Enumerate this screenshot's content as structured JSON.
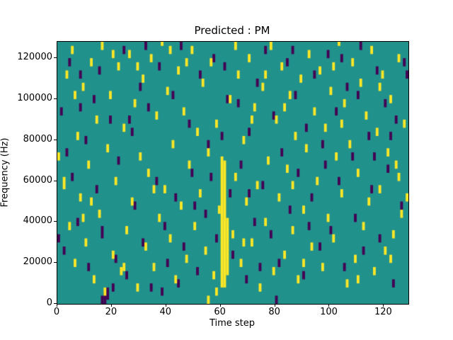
{
  "title": "Predicted : PM",
  "chart_data": {
    "type": "heatmap",
    "title": "Predicted : PM",
    "xlabel": "Time step",
    "ylabel": "Frequency (Hz)",
    "x_range": [
      0,
      129
    ],
    "y_range": [
      0,
      128000
    ],
    "n_time_steps": 129,
    "n_freq_bins": 64,
    "freq_bin_hz": 2000,
    "x_ticks": [
      0,
      20,
      40,
      60,
      80,
      100,
      120
    ],
    "y_ticks": [
      0,
      20000,
      40000,
      60000,
      80000,
      100000,
      120000
    ],
    "grid": false,
    "legend": "none",
    "colors": {
      "background": "#21918c",
      "high": "#fde725",
      "low": "#440154"
    },
    "cells": {
      "high_runs": [
        [
          60,
          4,
          35
        ],
        [
          61,
          4,
          34
        ],
        [
          62,
          7,
          20
        ],
        [
          2,
          28,
          30
        ],
        [
          3,
          55,
          56
        ],
        [
          4,
          18,
          19
        ],
        [
          5,
          61,
          62
        ],
        [
          6,
          9,
          10
        ],
        [
          7,
          40,
          41
        ],
        [
          8,
          25,
          26
        ],
        [
          9,
          52,
          53
        ],
        [
          10,
          14,
          15
        ],
        [
          11,
          33,
          34
        ],
        [
          12,
          58,
          59
        ],
        [
          13,
          5,
          6
        ],
        [
          14,
          44,
          45
        ],
        [
          15,
          21,
          22
        ],
        [
          16,
          62,
          63
        ],
        [
          17,
          2,
          3
        ],
        [
          18,
          37,
          38
        ],
        [
          19,
          50,
          51
        ],
        [
          20,
          11,
          12
        ],
        [
          21,
          29,
          30
        ],
        [
          22,
          57,
          58
        ],
        [
          23,
          7,
          8
        ],
        [
          24,
          42,
          43
        ],
        [
          25,
          17,
          18
        ],
        [
          26,
          60,
          61
        ],
        [
          27,
          24,
          25
        ],
        [
          28,
          48,
          49
        ],
        [
          29,
          3,
          4
        ],
        [
          30,
          35,
          36
        ],
        [
          31,
          54,
          55
        ],
        [
          32,
          13,
          14
        ],
        [
          33,
          31,
          32
        ],
        [
          34,
          59,
          60
        ],
        [
          35,
          8,
          9
        ],
        [
          36,
          45,
          46
        ],
        [
          37,
          20,
          21
        ],
        [
          38,
          63,
          63
        ],
        [
          39,
          27,
          28
        ],
        [
          40,
          51,
          52
        ],
        [
          41,
          15,
          16
        ],
        [
          42,
          38,
          39
        ],
        [
          43,
          5,
          6
        ],
        [
          44,
          56,
          57
        ],
        [
          45,
          23,
          24
        ],
        [
          46,
          46,
          47
        ],
        [
          47,
          10,
          11
        ],
        [
          48,
          33,
          34
        ],
        [
          49,
          61,
          62
        ],
        [
          50,
          18,
          19
        ],
        [
          51,
          41,
          42
        ],
        [
          52,
          26,
          27
        ],
        [
          53,
          53,
          54
        ],
        [
          54,
          12,
          13
        ],
        [
          55,
          36,
          37
        ],
        [
          56,
          58,
          59
        ],
        [
          57,
          6,
          7
        ],
        [
          58,
          43,
          44
        ],
        [
          59,
          22,
          23
        ],
        [
          63,
          49,
          50
        ],
        [
          64,
          16,
          17
        ],
        [
          65,
          30,
          31
        ],
        [
          66,
          55,
          56
        ],
        [
          67,
          9,
          10
        ],
        [
          68,
          39,
          40
        ],
        [
          69,
          24,
          25
        ],
        [
          70,
          59,
          60
        ],
        [
          71,
          14,
          15
        ],
        [
          72,
          47,
          48
        ],
        [
          73,
          28,
          29
        ],
        [
          74,
          3,
          4
        ],
        [
          75,
          52,
          53
        ],
        [
          76,
          19,
          20
        ],
        [
          77,
          34,
          35
        ],
        [
          78,
          62,
          63
        ],
        [
          79,
          7,
          8
        ],
        [
          80,
          44,
          45
        ],
        [
          81,
          25,
          26
        ],
        [
          82,
          57,
          58
        ],
        [
          83,
          11,
          12
        ],
        [
          84,
          32,
          33
        ],
        [
          85,
          50,
          51
        ],
        [
          86,
          17,
          18
        ],
        [
          87,
          40,
          41
        ],
        [
          88,
          5,
          6
        ],
        [
          89,
          54,
          55
        ],
        [
          90,
          22,
          23
        ],
        [
          91,
          37,
          38
        ],
        [
          92,
          60,
          61
        ],
        [
          93,
          13,
          14
        ],
        [
          94,
          46,
          47
        ],
        [
          95,
          29,
          30
        ],
        [
          96,
          56,
          57
        ],
        [
          97,
          8,
          9
        ],
        [
          98,
          42,
          43
        ],
        [
          99,
          20,
          21
        ],
        [
          100,
          51,
          52
        ],
        [
          101,
          15,
          16
        ],
        [
          102,
          35,
          36
        ],
        [
          103,
          63,
          63
        ],
        [
          104,
          26,
          27
        ],
        [
          105,
          48,
          49
        ],
        [
          106,
          4,
          5
        ],
        [
          107,
          38,
          39
        ],
        [
          108,
          58,
          59
        ],
        [
          109,
          10,
          11
        ],
        [
          110,
          31,
          32
        ],
        [
          111,
          53,
          54
        ],
        [
          112,
          18,
          19
        ],
        [
          113,
          45,
          46
        ],
        [
          114,
          24,
          25
        ],
        [
          115,
          61,
          62
        ],
        [
          116,
          7,
          8
        ],
        [
          117,
          41,
          42
        ],
        [
          118,
          27,
          28
        ],
        [
          119,
          55,
          56
        ],
        [
          120,
          12,
          13
        ],
        [
          121,
          36,
          37
        ],
        [
          122,
          49,
          50
        ],
        [
          123,
          16,
          17
        ],
        [
          124,
          33,
          34
        ],
        [
          125,
          59,
          60
        ],
        [
          126,
          21,
          22
        ],
        [
          127,
          43,
          44
        ],
        [
          6,
          50,
          51
        ],
        [
          20,
          60,
          61
        ],
        [
          29,
          57,
          58
        ],
        [
          35,
          27,
          28
        ],
        [
          47,
          58,
          59
        ],
        [
          58,
          2,
          3
        ],
        [
          65,
          62,
          63
        ],
        [
          71,
          44,
          45
        ],
        [
          83,
          47,
          48
        ],
        [
          90,
          9,
          10
        ],
        [
          101,
          57,
          58
        ],
        [
          110,
          5,
          6
        ],
        [
          118,
          52,
          53
        ],
        [
          125,
          30,
          31
        ],
        [
          9,
          20,
          21
        ],
        [
          24,
          8,
          9
        ],
        [
          41,
          61,
          62
        ],
        [
          55,
          0,
          1
        ],
        [
          68,
          14,
          15
        ],
        [
          86,
          28,
          29
        ],
        [
          104,
          43,
          44
        ],
        [
          122,
          10,
          11
        ],
        [
          0,
          35,
          36
        ],
        [
          128,
          25,
          26
        ],
        [
          12,
          24,
          25
        ],
        [
          76,
          55,
          56
        ]
      ],
      "low_runs": [
        [
          1,
          46,
          47
        ],
        [
          2,
          12,
          13
        ],
        [
          4,
          58,
          59
        ],
        [
          5,
          30,
          31
        ],
        [
          7,
          19,
          20
        ],
        [
          8,
          55,
          56
        ],
        [
          10,
          39,
          40
        ],
        [
          11,
          8,
          9
        ],
        [
          13,
          49,
          50
        ],
        [
          14,
          27,
          28
        ],
        [
          16,
          16,
          18
        ],
        [
          16,
          0,
          1
        ],
        [
          17,
          0,
          2
        ],
        [
          18,
          1,
          3
        ],
        [
          19,
          44,
          45
        ],
        [
          21,
          10,
          11
        ],
        [
          22,
          34,
          35
        ],
        [
          24,
          61,
          62
        ],
        [
          25,
          6,
          7
        ],
        [
          27,
          41,
          42
        ],
        [
          28,
          23,
          24
        ],
        [
          30,
          52,
          53
        ],
        [
          31,
          14,
          15
        ],
        [
          33,
          47,
          48
        ],
        [
          34,
          3,
          4
        ],
        [
          36,
          29,
          30
        ],
        [
          37,
          57,
          58
        ],
        [
          39,
          18,
          19
        ],
        [
          40,
          9,
          10
        ],
        [
          42,
          50,
          51
        ],
        [
          43,
          25,
          26
        ],
        [
          45,
          62,
          63
        ],
        [
          46,
          13,
          14
        ],
        [
          48,
          43,
          44
        ],
        [
          49,
          31,
          32
        ],
        [
          51,
          7,
          8
        ],
        [
          52,
          55,
          56
        ],
        [
          54,
          21,
          22
        ],
        [
          55,
          38,
          39
        ],
        [
          57,
          59,
          60
        ],
        [
          58,
          15,
          16
        ],
        [
          60,
          40,
          41
        ],
        [
          61,
          57,
          58
        ],
        [
          63,
          26,
          27
        ],
        [
          64,
          11,
          12
        ],
        [
          66,
          48,
          49
        ],
        [
          67,
          33,
          34
        ],
        [
          69,
          5,
          6
        ],
        [
          70,
          41,
          42
        ],
        [
          72,
          19,
          20
        ],
        [
          73,
          53,
          54
        ],
        [
          75,
          28,
          29
        ],
        [
          76,
          61,
          62
        ],
        [
          78,
          16,
          17
        ],
        [
          79,
          45,
          46
        ],
        [
          81,
          9,
          10
        ],
        [
          82,
          36,
          37
        ],
        [
          84,
          58,
          59
        ],
        [
          85,
          22,
          23
        ],
        [
          87,
          50,
          51
        ],
        [
          88,
          31,
          32
        ],
        [
          90,
          6,
          7
        ],
        [
          91,
          42,
          43
        ],
        [
          93,
          25,
          26
        ],
        [
          94,
          55,
          56
        ],
        [
          96,
          13,
          14
        ],
        [
          97,
          38,
          39
        ],
        [
          99,
          60,
          61
        ],
        [
          100,
          17,
          18
        ],
        [
          102,
          46,
          47
        ],
        [
          103,
          29,
          30
        ],
        [
          105,
          8,
          9
        ],
        [
          106,
          52,
          53
        ],
        [
          108,
          35,
          36
        ],
        [
          109,
          20,
          21
        ],
        [
          111,
          62,
          63
        ],
        [
          112,
          12,
          13
        ],
        [
          114,
          40,
          41
        ],
        [
          115,
          27,
          28
        ],
        [
          117,
          56,
          57
        ],
        [
          118,
          15,
          16
        ],
        [
          120,
          48,
          49
        ],
        [
          121,
          32,
          33
        ],
        [
          123,
          4,
          5
        ],
        [
          124,
          44,
          45
        ],
        [
          126,
          23,
          24
        ],
        [
          127,
          58,
          59
        ],
        [
          3,
          36,
          37
        ],
        [
          15,
          56,
          57
        ],
        [
          26,
          44,
          45
        ],
        [
          38,
          2,
          3
        ],
        [
          50,
          23,
          24
        ],
        [
          62,
          49,
          50
        ],
        [
          74,
          8,
          9
        ],
        [
          86,
          61,
          62
        ],
        [
          98,
          33,
          34
        ],
        [
          110,
          50,
          51
        ],
        [
          122,
          40,
          41
        ],
        [
          0,
          15,
          16
        ],
        [
          128,
          55,
          56
        ],
        [
          44,
          4,
          5
        ],
        [
          92,
          18,
          19
        ],
        [
          20,
          3,
          4
        ],
        [
          32,
          62,
          63
        ],
        [
          56,
          30,
          31
        ],
        [
          80,
          0,
          1
        ],
        [
          104,
          59,
          60
        ],
        [
          116,
          35,
          36
        ],
        [
          8,
          47,
          48
        ],
        [
          70,
          26,
          27
        ]
      ]
    }
  }
}
